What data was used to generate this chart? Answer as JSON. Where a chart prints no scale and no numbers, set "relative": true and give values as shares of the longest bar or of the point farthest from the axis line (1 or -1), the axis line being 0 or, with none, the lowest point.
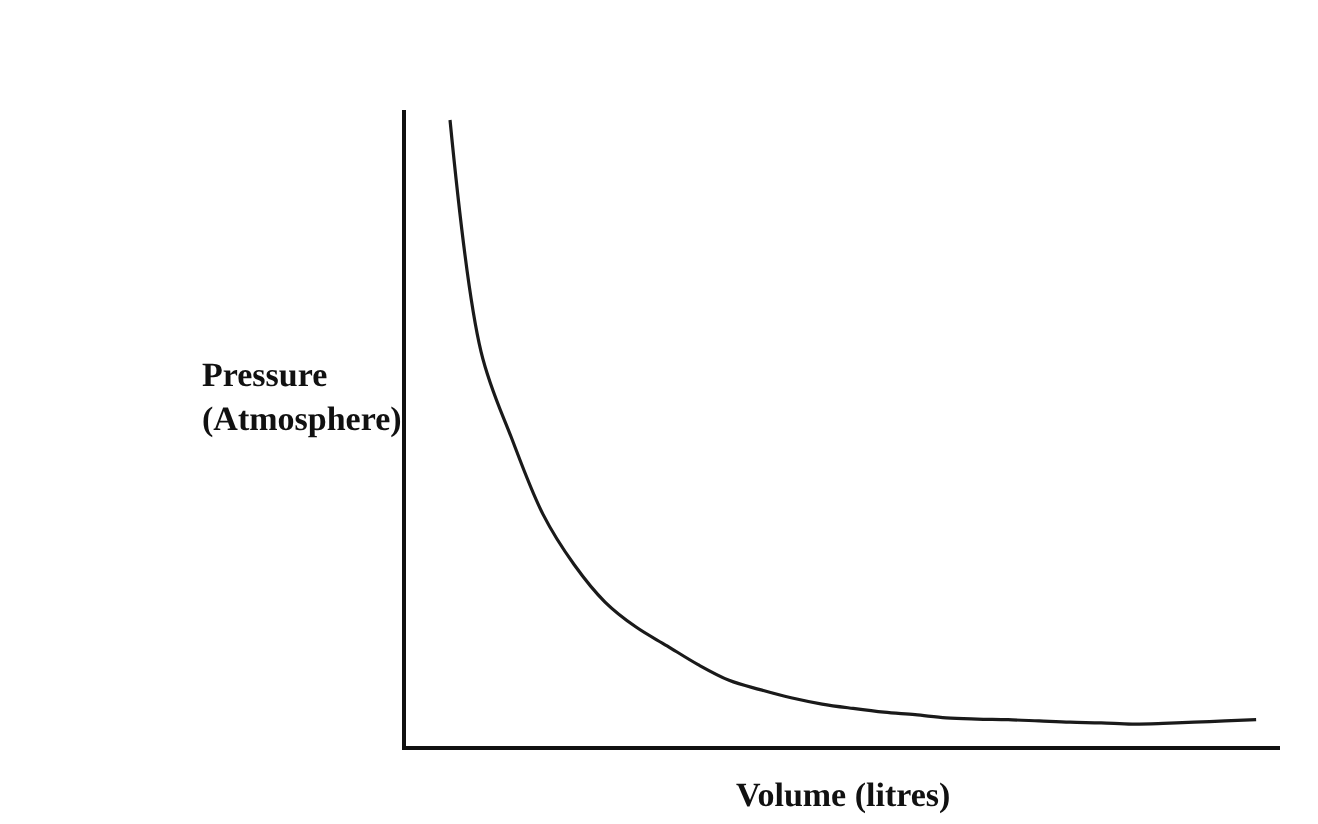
{
  "chart_data": {
    "type": "line",
    "relative": true,
    "xlabel": "Volume (litres)",
    "ylabel": "Pressure\n(Atmosphere)",
    "marker": "none",
    "line_style": "solid",
    "categories": [
      null,
      null,
      null,
      null,
      null,
      null,
      null,
      null,
      null,
      null,
      null,
      null,
      null,
      null,
      null,
      null,
      null,
      null,
      null,
      null,
      null,
      null,
      null,
      null,
      null,
      null,
      null
    ],
    "series": [
      {
        "color": "#1a1a1a",
        "values": [
          1.0,
          0.63,
          0.49,
          0.37,
          0.29,
          0.23,
          0.19,
          0.16,
          0.13,
          0.105,
          0.09,
          0.077,
          0.067,
          0.06,
          0.054,
          0.05,
          0.045,
          0.043,
          0.042,
          0.04,
          0.038,
          0.037,
          0.035,
          0.036,
          0.038,
          0.04,
          0.042
        ]
      }
    ]
  }
}
